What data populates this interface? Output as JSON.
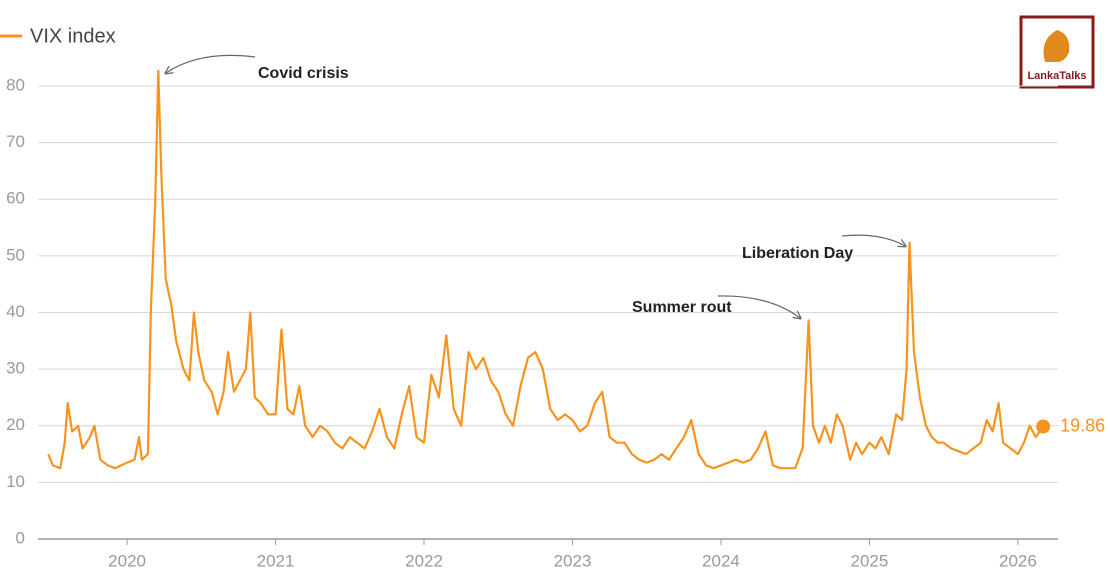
{
  "chart_data": {
    "type": "line",
    "logo": "LankaTalks",
    "annotations": [
      "Covid crisis",
      "Summer rout",
      "Liberation Day"
    ],
    "xlim": [
      2019.4,
      2026.27
    ],
    "xticks": [
      2020,
      2021,
      2022,
      2023,
      2024,
      2025,
      2026
    ],
    "ylim": [
      0,
      85
    ],
    "yticks": [
      0,
      10,
      20,
      30,
      40,
      50,
      60,
      70,
      80
    ],
    "grid": true,
    "legend": "top-left",
    "x": [
      2019.47,
      2019.5,
      2019.55,
      2019.58,
      2019.6,
      2019.63,
      2019.67,
      2019.7,
      2019.75,
      2019.78,
      2019.82,
      2019.87,
      2019.92,
      2019.96,
      2020.0,
      2020.05,
      2020.08,
      2020.1,
      2020.14,
      2020.16,
      2020.19,
      2020.21,
      2020.23,
      2020.26,
      2020.3,
      2020.33,
      2020.38,
      2020.42,
      2020.45,
      2020.48,
      2020.52,
      2020.57,
      2020.61,
      2020.65,
      2020.68,
      2020.72,
      2020.76,
      2020.8,
      2020.83,
      2020.86,
      2020.9,
      2020.95,
      2021.0,
      2021.04,
      2021.08,
      2021.12,
      2021.16,
      2021.2,
      2021.25,
      2021.3,
      2021.35,
      2021.4,
      2021.45,
      2021.5,
      2021.55,
      2021.6,
      2021.65,
      2021.7,
      2021.75,
      2021.8,
      2021.85,
      2021.9,
      2021.95,
      2022.0,
      2022.05,
      2022.1,
      2022.15,
      2022.2,
      2022.25,
      2022.3,
      2022.35,
      2022.4,
      2022.45,
      2022.5,
      2022.55,
      2022.6,
      2022.65,
      2022.7,
      2022.75,
      2022.8,
      2022.85,
      2022.9,
      2022.95,
      2023.0,
      2023.05,
      2023.1,
      2023.15,
      2023.2,
      2023.25,
      2023.3,
      2023.35,
      2023.4,
      2023.45,
      2023.5,
      2023.55,
      2023.6,
      2023.65,
      2023.7,
      2023.75,
      2023.8,
      2023.85,
      2023.9,
      2023.95,
      2024.0,
      2024.05,
      2024.1,
      2024.15,
      2024.2,
      2024.25,
      2024.3,
      2024.35,
      2024.4,
      2024.45,
      2024.5,
      2024.55,
      2024.59,
      2024.62,
      2024.66,
      2024.7,
      2024.74,
      2024.78,
      2024.82,
      2024.87,
      2024.91,
      2024.95,
      2025.0,
      2025.04,
      2025.08,
      2025.13,
      2025.18,
      2025.22,
      2025.25,
      2025.27,
      2025.3,
      2025.34,
      2025.38,
      2025.42,
      2025.46,
      2025.5,
      2025.55,
      2025.6,
      2025.65,
      2025.7,
      2025.75,
      2025.79,
      2025.83,
      2025.87,
      2025.9,
      2025.95,
      2026.0,
      2026.04,
      2026.08,
      2026.12,
      2026.17
    ],
    "series": [
      {
        "name": "VIX index",
        "color": "#f7931e",
        "values": [
          15,
          13,
          12.5,
          17,
          24,
          19,
          20,
          16,
          18,
          20,
          14,
          13,
          12.5,
          13,
          13.5,
          14,
          18,
          14,
          15,
          40,
          60,
          82.7,
          65,
          46,
          41,
          35,
          30,
          28,
          40,
          33,
          28,
          26,
          22,
          26,
          33,
          26,
          28,
          30,
          40,
          25,
          24,
          22,
          22,
          37,
          23,
          22,
          27,
          20,
          18,
          20,
          19,
          17,
          16,
          18,
          17,
          16,
          19,
          23,
          18,
          16,
          22,
          27,
          18,
          17,
          29,
          25,
          36,
          23,
          20,
          33,
          30,
          32,
          28,
          26,
          22,
          20,
          27,
          32,
          33,
          30,
          23,
          21,
          22,
          21,
          19,
          20,
          24,
          26,
          18,
          17,
          17,
          15,
          14,
          13.5,
          14,
          15,
          14,
          16,
          18,
          21,
          15,
          13,
          12.5,
          13,
          13.5,
          14,
          13.5,
          14,
          16,
          19,
          13,
          12.5,
          12.5,
          12.5,
          16,
          38.6,
          20,
          17,
          20,
          17,
          22,
          20,
          14,
          17,
          15,
          17,
          16,
          18,
          15,
          22,
          21,
          30,
          52.3,
          33,
          25,
          20,
          18,
          17,
          17,
          16,
          15.5,
          15,
          16,
          17,
          21,
          19,
          24,
          17,
          16,
          15,
          17,
          20,
          18,
          19.86
        ]
      }
    ]
  }
}
